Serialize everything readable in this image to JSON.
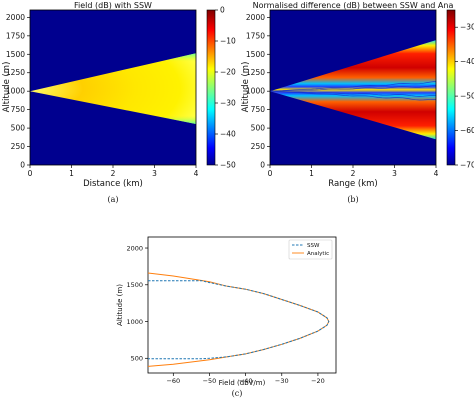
{
  "chart_data": [
    {
      "type": "heatmap",
      "panel": "a",
      "title": "Field (dB) with SSW",
      "xlabel": "Distance (km)",
      "ylabel": "Altitude (m)",
      "xlim": [
        0,
        4
      ],
      "ylim": [
        0,
        2100
      ],
      "x_ticks": [
        "0",
        "1",
        "2",
        "3",
        "4"
      ],
      "y_ticks": [
        "0",
        "250",
        "500",
        "750",
        "1000",
        "1250",
        "1500",
        "1750",
        "2000"
      ],
      "colorbar": {
        "min": -50,
        "max": 0,
        "ticks": [
          "0",
          "−10",
          "−20",
          "−30",
          "−40",
          "−50"
        ],
        "colormap": "jet"
      },
      "beam": {
        "source_x": 0,
        "source_altitude": 1000,
        "upper_edge_at_x4": 1520,
        "lower_edge_at_x4": 550
      }
    },
    {
      "type": "heatmap",
      "panel": "b",
      "title": "Normalised difference (dB) between SSW and Ana",
      "xlabel": "Range (km)",
      "ylabel": "Altitude (m)",
      "xlim": [
        0,
        4
      ],
      "ylim": [
        0,
        2100
      ],
      "x_ticks": [
        "0",
        "1",
        "2",
        "3",
        "4"
      ],
      "y_ticks": [
        "0",
        "250",
        "500",
        "750",
        "1000",
        "1250",
        "1500",
        "1750",
        "2000"
      ],
      "colorbar": {
        "min": -70,
        "max": -25,
        "ticks": [
          "−30",
          "−40",
          "−50",
          "−60",
          "−70"
        ],
        "colormap": "jet"
      },
      "beam": {
        "source_x": 0,
        "source_altitude": 1000,
        "upper_edge_at_x4": 1700,
        "lower_edge_at_x4": 340
      }
    },
    {
      "type": "line",
      "panel": "c",
      "xlabel": "Field (dbV/m)",
      "ylabel": "Altitude (m)",
      "xlim": [
        -67,
        -15
      ],
      "ylim": [
        300,
        2150
      ],
      "x_ticks": [
        "−60",
        "−50",
        "−40",
        "−30",
        "−20"
      ],
      "y_ticks": [
        "500",
        "1000",
        "1500",
        "2000"
      ],
      "legend": "top-right",
      "series": [
        {
          "name": "SSW",
          "style": "dashed",
          "color": "#1f77b4",
          "points": [
            [
              -67,
              1555
            ],
            [
              -52,
              1555
            ],
            [
              -51,
              1540
            ],
            [
              -45,
              1480
            ],
            [
              -40,
              1440
            ],
            [
              -35,
              1380
            ],
            [
              -30,
              1300
            ],
            [
              -25,
              1220
            ],
            [
              -20,
              1130
            ],
            [
              -17.5,
              1050
            ],
            [
              -17,
              1000
            ],
            [
              -17.5,
              950
            ],
            [
              -20,
              870
            ],
            [
              -25,
              770
            ],
            [
              -30,
              690
            ],
            [
              -35,
              620
            ],
            [
              -40,
              560
            ],
            [
              -45,
              520
            ],
            [
              -50,
              500
            ],
            [
              -52,
              495
            ],
            [
              -67,
              495
            ]
          ]
        },
        {
          "name": "Analytic",
          "style": "solid",
          "color": "#ff7f0e",
          "points": [
            [
              -67,
              1660
            ],
            [
              -60,
              1620
            ],
            [
              -55,
              1580
            ],
            [
              -50,
              1540
            ],
            [
              -45,
              1480
            ],
            [
              -40,
              1440
            ],
            [
              -35,
              1380
            ],
            [
              -30,
              1300
            ],
            [
              -25,
              1220
            ],
            [
              -20,
              1130
            ],
            [
              -17.5,
              1050
            ],
            [
              -17,
              1000
            ],
            [
              -17.5,
              950
            ],
            [
              -20,
              870
            ],
            [
              -25,
              770
            ],
            [
              -30,
              690
            ],
            [
              -35,
              620
            ],
            [
              -40,
              560
            ],
            [
              -45,
              520
            ],
            [
              -50,
              480
            ],
            [
              -55,
              450
            ],
            [
              -60,
              420
            ],
            [
              -67,
              390
            ]
          ]
        }
      ]
    }
  ],
  "captions": {
    "a": "(a)",
    "b": "(b)",
    "c": "(c)"
  }
}
